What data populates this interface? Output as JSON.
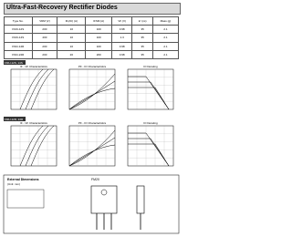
{
  "header": {
    "title": "Ultra-Fast-Recovery Rectifier Diodes"
  },
  "table": {
    "headers": [
      "Type No.",
      "VRM (V)",
      "IF(AV) (A)",
      "IFSM (A)",
      "VF (V)",
      "trr (ns)",
      "Mass (g)"
    ],
    "rows": [
      [
        "FMU-12S",
        "200",
        "10",
        "100",
        "0.98",
        "35",
        "2.1"
      ],
      [
        "FMU-14S",
        "400",
        "10",
        "100",
        "1.3",
        "35",
        "2.1"
      ],
      [
        "FMU-12R",
        "200",
        "10",
        "100",
        "0.98",
        "35",
        "2.1"
      ],
      [
        "FMU-22R",
        "200",
        "20",
        "200",
        "0.98",
        "35",
        "2.1"
      ]
    ]
  },
  "sections": [
    {
      "tag": "FMU-12S, 14S",
      "graphs": [
        "IF - VF Characteristics",
        "PF - IO Characteristics",
        "IO Derating"
      ]
    },
    {
      "tag": "FMU-12R, 22R",
      "graphs": [
        "IF - VF Characteristics",
        "PF - IO Characteristics",
        "IO Derating"
      ]
    }
  ],
  "dimensions": {
    "title": "External Dimensions",
    "note": "(Unit: mm)",
    "package": "FM20"
  }
}
